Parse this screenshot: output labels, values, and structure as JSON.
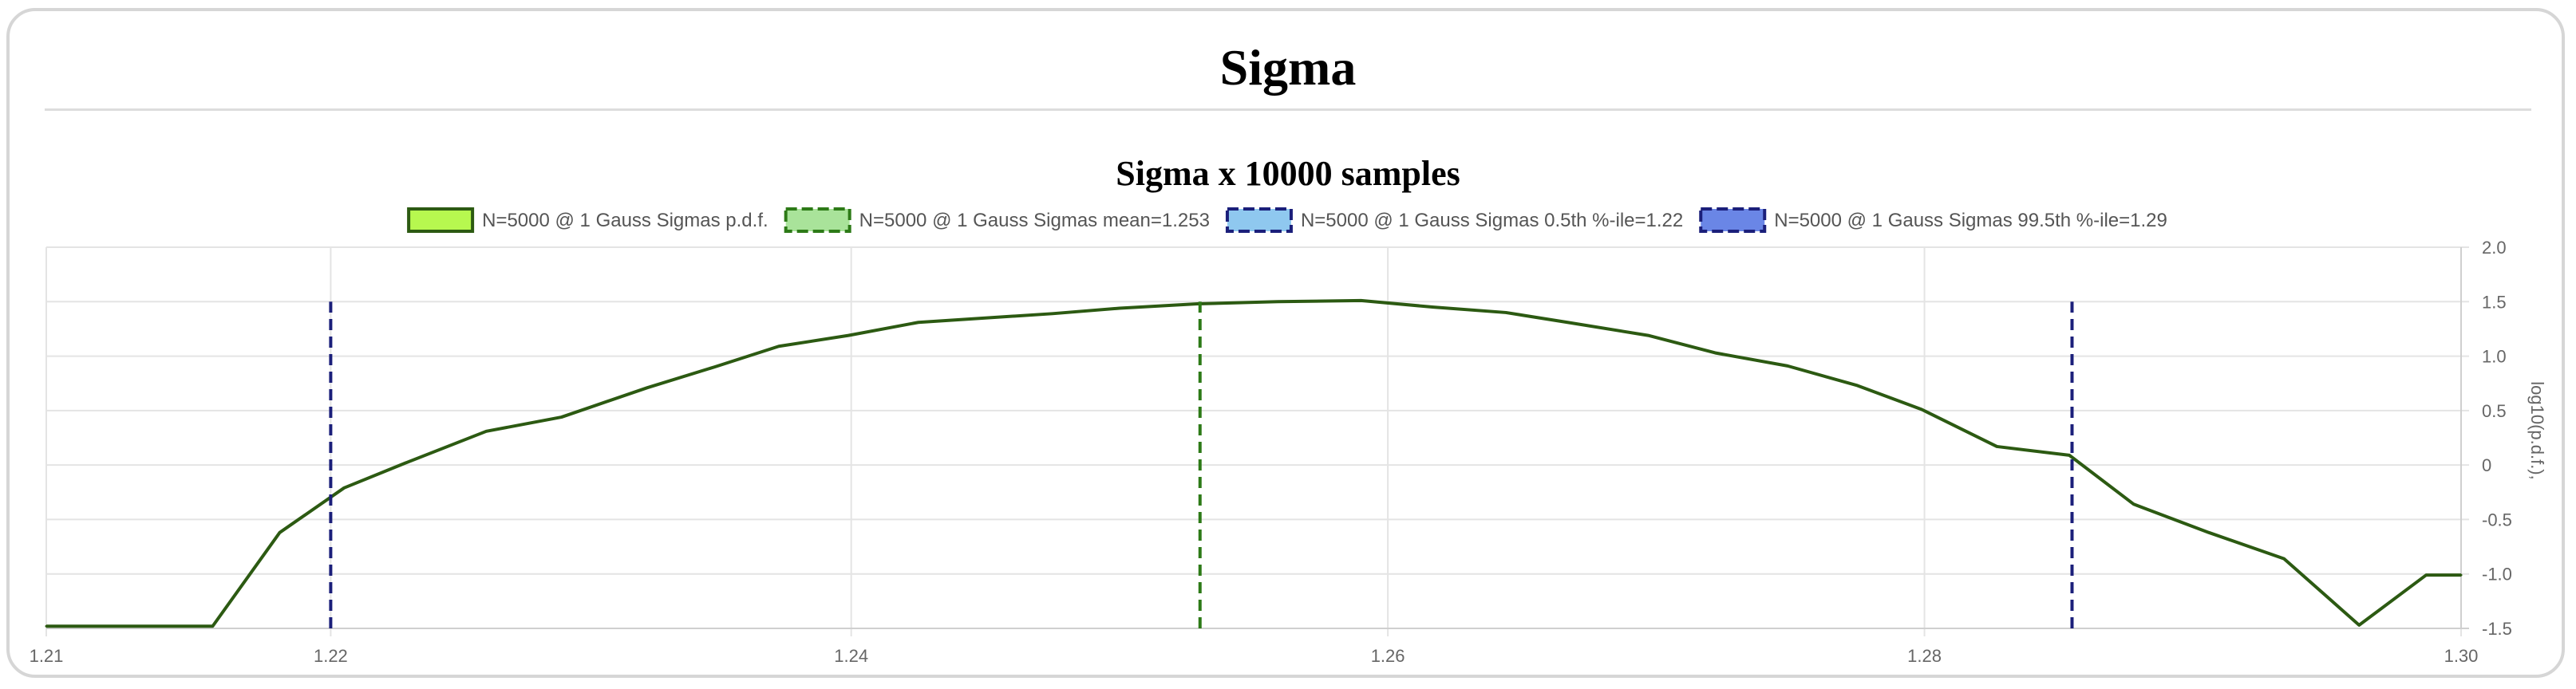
{
  "page": {
    "title": "Sigma"
  },
  "chart_data": {
    "type": "line",
    "title": "Sigma x 10000 samples",
    "xlabel": "",
    "ylabel": "log10(p.d.f.),",
    "xlim": [
      1.21,
      1.3
    ],
    "ylim": [
      -1.5,
      2.0
    ],
    "x_ticks": [
      "1.21",
      "1.22",
      "1.24",
      "1.26",
      "1.28",
      "1.30"
    ],
    "x_tick_values": [
      1.21,
      1.2206,
      1.24,
      1.26,
      1.28,
      1.3
    ],
    "y_ticks": [
      "2.0",
      "1.5",
      "1.0",
      "0.5",
      "0",
      "-0.5",
      "-1.0",
      "-1.5"
    ],
    "y_tick_values": [
      2.0,
      1.5,
      1.0,
      0.5,
      0,
      -0.5,
      -1.0,
      -1.5
    ],
    "y_axis_position": "right",
    "grid": true,
    "legend_position": "top",
    "series": [
      {
        "name": "N=5000 @ 1 Gauss Sigmas p.d.f.",
        "kind": "line",
        "color": "#2c5a12",
        "fill": "#b7f84f",
        "x": [
          1.21,
          1.2162,
          1.2187,
          1.2211,
          1.2234,
          1.2264,
          1.2292,
          1.2324,
          1.2349,
          1.2373,
          1.2399,
          1.2425,
          1.2475,
          1.25,
          1.2529,
          1.2559,
          1.259,
          1.2617,
          1.2644,
          1.2667,
          1.2697,
          1.2722,
          1.2749,
          1.2775,
          1.2799,
          1.2827,
          1.2854,
          1.2878,
          1.2906,
          1.2934,
          1.2962,
          1.2987,
          1.3
        ],
        "y": [
          -1.48,
          -1.48,
          -0.62,
          -0.21,
          0.02,
          0.31,
          0.44,
          0.71,
          0.9,
          1.09,
          1.19,
          1.31,
          1.39,
          1.44,
          1.48,
          1.5,
          1.51,
          1.45,
          1.4,
          1.31,
          1.19,
          1.03,
          0.91,
          0.73,
          0.51,
          0.17,
          0.09,
          -0.36,
          -0.62,
          -0.86,
          -1.47,
          -1.01,
          -1.01
        ]
      },
      {
        "name": "N=5000 @ 1 Gauss Sigmas mean=1.253",
        "kind": "vline",
        "color": "#2d7a17",
        "fill": "#a9e39a",
        "x": 1.253,
        "y_range": [
          -1.5,
          1.5
        ]
      },
      {
        "name": "N=5000 @ 1 Gauss Sigmas 0.5th %-ile=1.22",
        "kind": "vline",
        "color": "#1b1f7a",
        "fill": "#8fc8ef",
        "x": 1.2206,
        "y_range": [
          -1.5,
          1.5
        ]
      },
      {
        "name": "N=5000 @ 1 Gauss Sigmas 99.5th %-ile=1.29",
        "kind": "vline",
        "color": "#1b1f7a",
        "fill": "#6a86e6",
        "x": 1.2855,
        "y_range": [
          -1.5,
          1.5
        ]
      }
    ]
  }
}
